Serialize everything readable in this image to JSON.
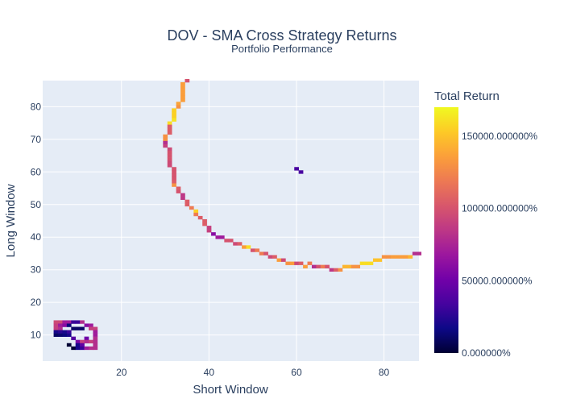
{
  "chart_data": {
    "type": "heatmap",
    "title": "DOV - SMA Cross Strategy Returns",
    "subtitle": "Portfolio Performance",
    "xlabel": "Short Window",
    "ylabel": "Long Window",
    "xlim": [
      2,
      88
    ],
    "ylim": [
      2,
      88
    ],
    "x_ticks": [
      20,
      40,
      60,
      80
    ],
    "y_ticks": [
      10,
      20,
      30,
      40,
      50,
      60,
      70,
      80
    ],
    "grid": true,
    "colorbar": {
      "title": "Total Return",
      "range": [
        0,
        1700
      ],
      "ticks": [
        0,
        500,
        1000,
        1500
      ],
      "tick_labels": [
        "0.000000%",
        "50000.000000%",
        "100000.000000%",
        "150000.000000%"
      ],
      "colorscale": [
        "#0d0887",
        "#46039f",
        "#7201a8",
        "#9c179e",
        "#bd3786",
        "#d8576b",
        "#ed7953",
        "#fb9f3a",
        "#fdca26",
        "#f0f921"
      ],
      "low_color": "#000033"
    },
    "points": [
      [
        35,
        88,
        1000
      ],
      [
        34,
        87,
        1350
      ],
      [
        34,
        86,
        1350
      ],
      [
        34,
        85,
        1350
      ],
      [
        34,
        84,
        1350
      ],
      [
        34,
        83,
        1350
      ],
      [
        34,
        82,
        1350
      ],
      [
        33,
        81,
        1380
      ],
      [
        33,
        80,
        1300
      ],
      [
        32,
        79,
        1550
      ],
      [
        32,
        78,
        1550
      ],
      [
        32,
        77,
        1550
      ],
      [
        32,
        76,
        1620
      ],
      [
        31,
        75,
        1600
      ],
      [
        31,
        74,
        1050
      ],
      [
        31,
        73,
        1050
      ],
      [
        31,
        72,
        1050
      ],
      [
        30,
        71,
        1300
      ],
      [
        30,
        70,
        1300
      ],
      [
        30,
        69,
        800
      ],
      [
        30,
        68,
        900
      ],
      [
        31,
        67,
        950
      ],
      [
        31,
        66,
        1000
      ],
      [
        31,
        65,
        1000
      ],
      [
        31,
        64,
        1000
      ],
      [
        31,
        63,
        950
      ],
      [
        31,
        62,
        950
      ],
      [
        32,
        61,
        1000
      ],
      [
        32,
        60,
        1000
      ],
      [
        32,
        59,
        1000
      ],
      [
        32,
        58,
        1000
      ],
      [
        32,
        57,
        1050
      ],
      [
        32,
        56,
        1300
      ],
      [
        33,
        55,
        1050
      ],
      [
        33,
        54,
        1000
      ],
      [
        34,
        53,
        850
      ],
      [
        34,
        52,
        850
      ],
      [
        35,
        51,
        1050
      ],
      [
        35,
        50,
        1050
      ],
      [
        36,
        49,
        1200
      ],
      [
        37,
        48,
        1550
      ],
      [
        37,
        47,
        1200
      ],
      [
        38,
        46,
        1050
      ],
      [
        39,
        45,
        1050
      ],
      [
        39,
        44,
        1050
      ],
      [
        40,
        43,
        900
      ],
      [
        40,
        42,
        900
      ],
      [
        41,
        41,
        600
      ],
      [
        42,
        40,
        700
      ],
      [
        43,
        40,
        700
      ],
      [
        44,
        39,
        1000
      ],
      [
        45,
        39,
        1000
      ],
      [
        46,
        38,
        950
      ],
      [
        47,
        38,
        1050
      ],
      [
        48,
        37,
        1350
      ],
      [
        49,
        37,
        1600
      ],
      [
        50,
        36,
        1000
      ],
      [
        51,
        36,
        1200
      ],
      [
        52,
        35,
        1200
      ],
      [
        53,
        35,
        1000
      ],
      [
        54,
        34,
        950
      ],
      [
        55,
        34,
        1050
      ],
      [
        56,
        33,
        1350
      ],
      [
        57,
        33,
        950
      ],
      [
        58,
        32,
        1300
      ],
      [
        59,
        32,
        1350
      ],
      [
        60,
        32,
        950
      ],
      [
        61,
        32,
        1050
      ],
      [
        62,
        31,
        1350
      ],
      [
        63,
        32,
        1200
      ],
      [
        64,
        31,
        800
      ],
      [
        65,
        31,
        1000
      ],
      [
        66,
        31,
        1200
      ],
      [
        67,
        31,
        1000
      ],
      [
        68,
        30,
        850
      ],
      [
        69,
        30,
        1050
      ],
      [
        70,
        30,
        1300
      ],
      [
        71,
        31,
        1450
      ],
      [
        72,
        31,
        1450
      ],
      [
        73,
        31,
        1300
      ],
      [
        74,
        31,
        1300
      ],
      [
        75,
        32,
        1600
      ],
      [
        76,
        32,
        1600
      ],
      [
        77,
        32,
        1600
      ],
      [
        78,
        33,
        1500
      ],
      [
        79,
        33,
        1500
      ],
      [
        80,
        34,
        1300
      ],
      [
        81,
        34,
        1300
      ],
      [
        82,
        34,
        1350
      ],
      [
        83,
        34,
        1350
      ],
      [
        84,
        34,
        1350
      ],
      [
        85,
        34,
        1350
      ],
      [
        86,
        34,
        1450
      ],
      [
        87,
        35,
        800
      ],
      [
        88,
        35,
        800
      ],
      [
        60,
        61,
        350
      ],
      [
        61,
        60,
        350
      ],
      [
        5,
        14,
        950
      ],
      [
        6,
        14,
        950
      ],
      [
        7,
        14,
        700
      ],
      [
        8,
        14,
        700
      ],
      [
        9,
        14,
        300
      ],
      [
        10,
        14,
        300
      ],
      [
        11,
        14,
        800
      ],
      [
        12,
        13,
        600
      ],
      [
        13,
        13,
        700
      ],
      [
        5,
        13,
        900
      ],
      [
        6,
        13,
        700
      ],
      [
        7,
        13,
        600
      ],
      [
        8,
        13,
        150
      ],
      [
        9,
        12,
        100
      ],
      [
        10,
        12,
        100
      ],
      [
        11,
        12,
        100
      ],
      [
        14,
        12,
        900
      ],
      [
        5,
        12,
        900
      ],
      [
        6,
        12,
        800
      ],
      [
        13,
        12,
        900
      ],
      [
        5,
        11,
        200
      ],
      [
        6,
        11,
        250
      ],
      [
        7,
        11,
        200
      ],
      [
        8,
        11,
        300
      ],
      [
        5,
        10,
        100
      ],
      [
        6,
        10,
        120
      ],
      [
        7,
        10,
        150
      ],
      [
        8,
        10,
        200
      ],
      [
        14,
        11,
        700
      ],
      [
        14,
        10,
        700
      ],
      [
        9,
        9,
        400
      ],
      [
        12,
        9,
        500
      ],
      [
        14,
        9,
        800
      ],
      [
        10,
        8,
        550
      ],
      [
        11,
        8,
        900
      ],
      [
        12,
        8,
        800
      ],
      [
        13,
        8,
        900
      ],
      [
        14,
        8,
        800
      ],
      [
        10,
        7,
        200
      ],
      [
        11,
        7,
        450
      ],
      [
        14,
        7,
        800
      ],
      [
        8,
        7,
        0
      ],
      [
        9,
        6,
        0
      ],
      [
        10,
        6,
        200
      ],
      [
        11,
        6,
        300
      ],
      [
        12,
        6,
        700
      ],
      [
        13,
        6,
        800
      ],
      [
        14,
        6,
        800
      ]
    ]
  }
}
